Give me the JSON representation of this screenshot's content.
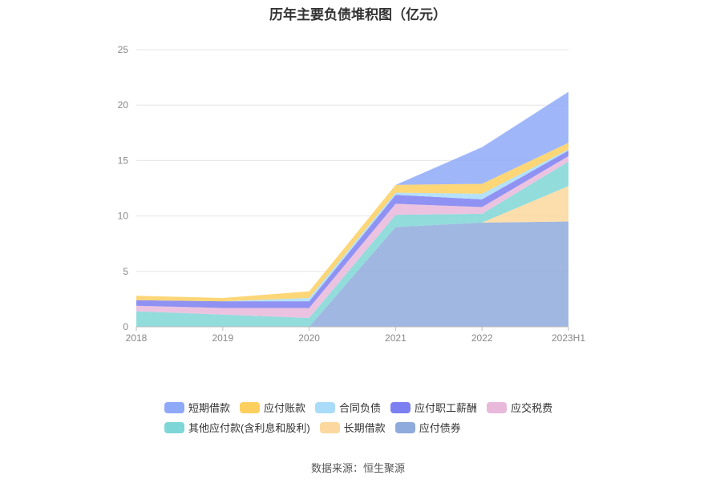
{
  "chart_data": {
    "type": "area",
    "title": "历年主要负债堆积图（亿元）",
    "categories": [
      "2018",
      "2019",
      "2020",
      "2021",
      "2022",
      "2023H1"
    ],
    "ylim": [
      0,
      25
    ],
    "yticks": [
      "0",
      "5",
      "10",
      "15",
      "20",
      "25"
    ],
    "stacked": true,
    "grid": true,
    "legend_position": "bottom",
    "series": [
      {
        "name": "应付债券",
        "color": "#8faadc",
        "values": [
          0,
          0,
          0,
          9.0,
          9.4,
          9.5
        ]
      },
      {
        "name": "长期借款",
        "color": "#fbd89e",
        "values": [
          0,
          0,
          0,
          0,
          0,
          3.2
        ]
      },
      {
        "name": "其他应付款(含利息和股利)",
        "color": "#7fd6d6",
        "values": [
          1.4,
          1.1,
          0.8,
          1.1,
          0.8,
          2.2
        ]
      },
      {
        "name": "应交税费",
        "color": "#e8b9db",
        "values": [
          0.5,
          0.6,
          0.9,
          1.0,
          0.6,
          0.5
        ]
      },
      {
        "name": "应付职工薪酬",
        "color": "#7b7ff0",
        "values": [
          0.5,
          0.6,
          0.6,
          0.8,
          0.7,
          0.5
        ]
      },
      {
        "name": "合同负债",
        "color": "#a8dcf8",
        "values": [
          0,
          0,
          0.3,
          0.2,
          0.5,
          0.1
        ]
      },
      {
        "name": "应付账款",
        "color": "#fccf5f",
        "values": [
          0.4,
          0.3,
          0.6,
          0.7,
          0.9,
          0.6
        ]
      },
      {
        "name": "短期借款",
        "color": "#8ea9f8",
        "values": [
          0,
          0,
          0,
          0,
          3.3,
          4.6
        ]
      }
    ],
    "legend_order": [
      "短期借款",
      "应付账款",
      "合同负债",
      "应付职工薪酬",
      "应交税费",
      "其他应付款(含利息和股利)",
      "长期借款",
      "应付债券"
    ]
  },
  "source": "数据来源：恒生聚源"
}
